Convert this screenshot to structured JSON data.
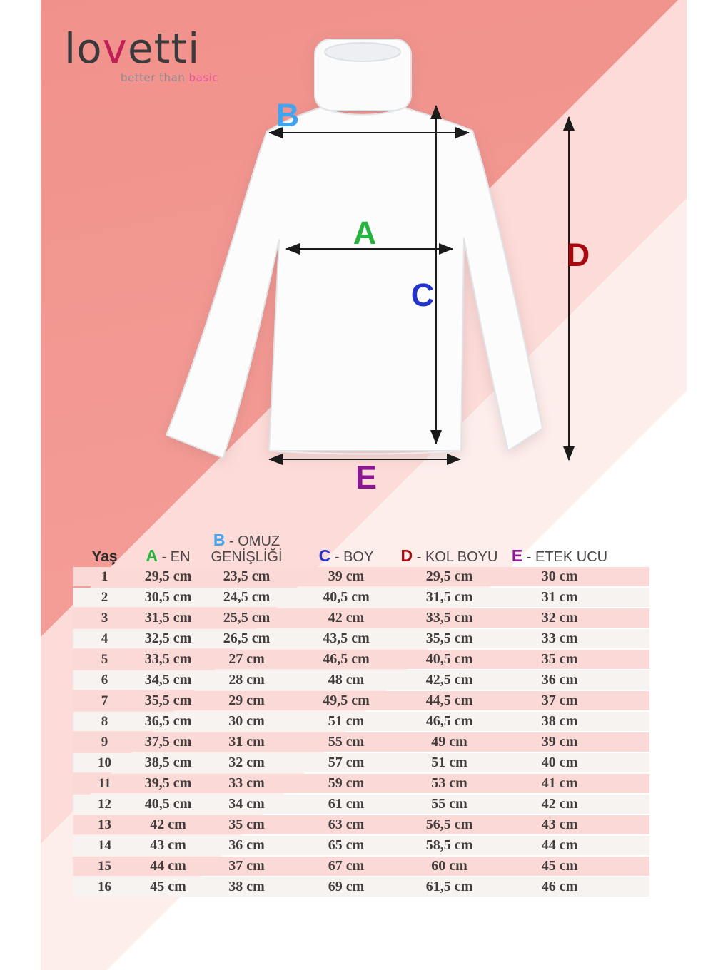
{
  "brand": {
    "logo_prefix": "lo",
    "logo_accent": "v",
    "logo_suffix": "etti",
    "tagline_start": "better than",
    "tagline_accent": "basic",
    "logo_color": "#3a393c",
    "logo_accent_color": "#c02058",
    "tagline_accent_color": "#e8579b"
  },
  "background_colors": {
    "salmon": "#f49c96",
    "light_pink": "#fcdbd8",
    "palest_pink": "#fdeeec",
    "row_pink": "#fbd9d6",
    "row_gray": "#f6f3f1"
  },
  "table": {
    "unit": "cm",
    "columns": [
      {
        "letter": "",
        "label": "Yaş",
        "color": "#2e2c2d"
      },
      {
        "letter": "A",
        "label": "EN",
        "color": "#27b43e"
      },
      {
        "letter": "B",
        "label": "OMUZ GENİŞLİĞİ",
        "color": "#3fa5f1"
      },
      {
        "letter": "C",
        "label": "BOY",
        "color": "#2433c9"
      },
      {
        "letter": "D",
        "label": "KOL BOYU",
        "color": "#a8090f"
      },
      {
        "letter": "E",
        "label": "ETEK UCU",
        "color": "#8b1793"
      }
    ],
    "rows": [
      {
        "yas": "1",
        "a": "29,5 cm",
        "b": "23,5 cm",
        "c": "39 cm",
        "d": "29,5 cm",
        "e": "30 cm"
      },
      {
        "yas": "2",
        "a": "30,5 cm",
        "b": "24,5 cm",
        "c": "40,5 cm",
        "d": "31,5 cm",
        "e": "31 cm"
      },
      {
        "yas": "3",
        "a": "31,5 cm",
        "b": "25,5 cm",
        "c": "42 cm",
        "d": "33,5 cm",
        "e": "32 cm"
      },
      {
        "yas": "4",
        "a": "32,5 cm",
        "b": "26,5 cm",
        "c": "43,5 cm",
        "d": "35,5 cm",
        "e": "33 cm"
      },
      {
        "yas": "5",
        "a": "33,5 cm",
        "b": "27 cm",
        "c": "46,5 cm",
        "d": "40,5 cm",
        "e": "35 cm"
      },
      {
        "yas": "6",
        "a": "34,5 cm",
        "b": "28 cm",
        "c": "48 cm",
        "d": "42,5 cm",
        "e": "36 cm"
      },
      {
        "yas": "7",
        "a": "35,5 cm",
        "b": "29 cm",
        "c": "49,5 cm",
        "d": "44,5 cm",
        "e": "37 cm"
      },
      {
        "yas": "8",
        "a": "36,5 cm",
        "b": "30 cm",
        "c": "51 cm",
        "d": "46,5 cm",
        "e": "38 cm"
      },
      {
        "yas": "9",
        "a": "37,5 cm",
        "b": "31 cm",
        "c": "55 cm",
        "d": "49 cm",
        "e": "39 cm"
      },
      {
        "yas": "10",
        "a": "38,5 cm",
        "b": "32 cm",
        "c": "57 cm",
        "d": "51 cm",
        "e": "40 cm"
      },
      {
        "yas": "11",
        "a": "39,5 cm",
        "b": "33 cm",
        "c": "59 cm",
        "d": "53 cm",
        "e": "41 cm"
      },
      {
        "yas": "12",
        "a": "40,5 cm",
        "b": "34 cm",
        "c": "61 cm",
        "d": "55 cm",
        "e": "42 cm"
      },
      {
        "yas": "13",
        "a": "42 cm",
        "b": "35 cm",
        "c": "63 cm",
        "d": "56,5 cm",
        "e": "43 cm"
      },
      {
        "yas": "14",
        "a": "43 cm",
        "b": "36 cm",
        "c": "65 cm",
        "d": "58,5 cm",
        "e": "44 cm"
      },
      {
        "yas": "15",
        "a": "44 cm",
        "b": "37 cm",
        "c": "67 cm",
        "d": "60 cm",
        "e": "45 cm"
      },
      {
        "yas": "16",
        "a": "45 cm",
        "b": "38 cm",
        "c": "69 cm",
        "d": "61,5 cm",
        "e": "46 cm"
      }
    ]
  }
}
